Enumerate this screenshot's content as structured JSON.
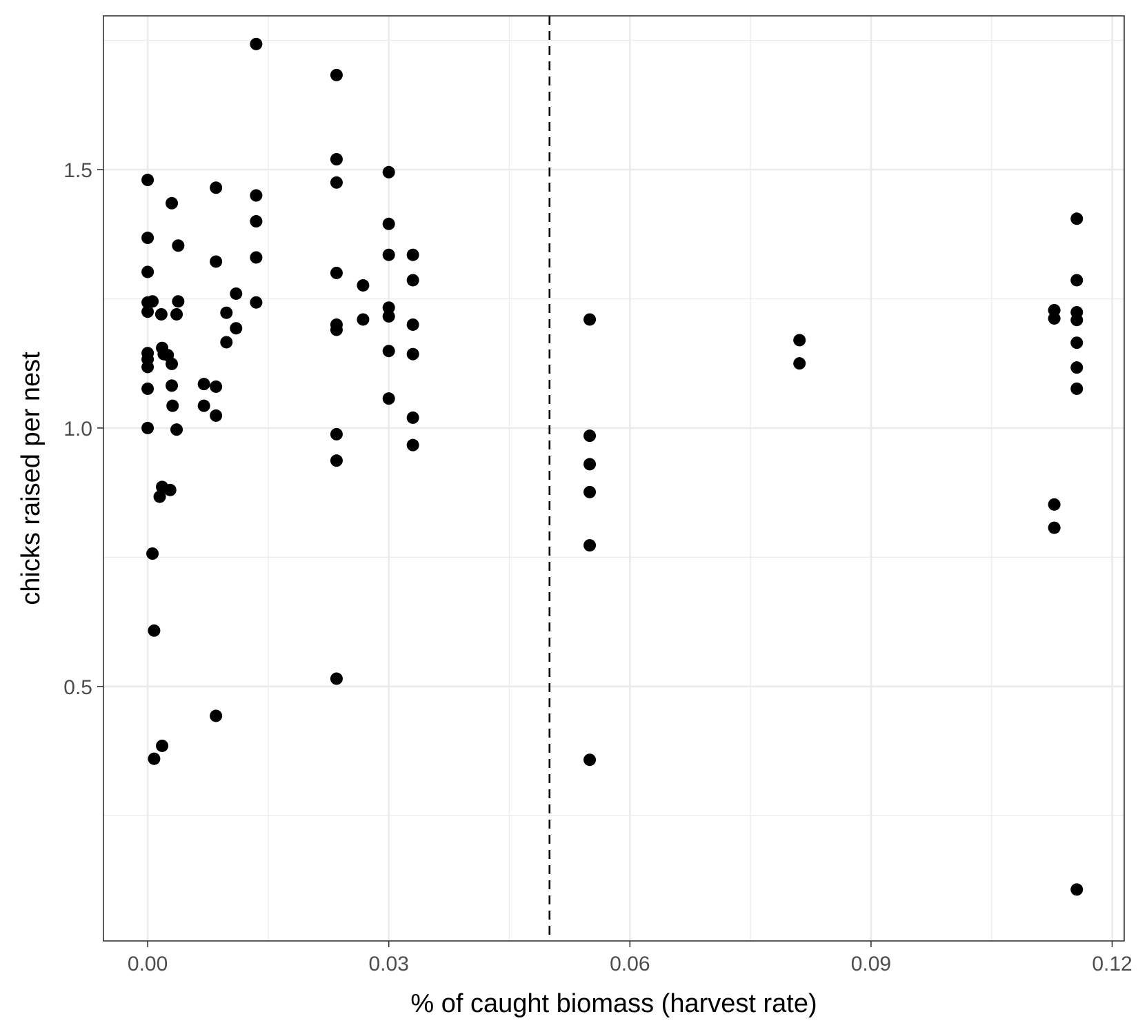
{
  "chart_data": {
    "type": "scatter",
    "xlabel": "% of caught biomass (harvest rate)",
    "ylabel": "chicks raised per nest",
    "xlim": [
      -0.0055,
      0.1215
    ],
    "ylim": [
      0.0075,
      1.7975
    ],
    "x_ticks": [
      0.0,
      0.03,
      0.06,
      0.09,
      0.12
    ],
    "x_tick_labels": [
      "0.00",
      "0.03",
      "0.06",
      "0.09",
      "0.12"
    ],
    "y_ticks": [
      0.5,
      1.0,
      1.5
    ],
    "y_tick_labels": [
      "0.5",
      "1.0",
      "1.5"
    ],
    "x_minor": [
      0.015,
      0.045,
      0.075,
      0.105
    ],
    "y_minor": [
      0.25,
      0.75,
      1.25,
      1.75
    ],
    "grid": true,
    "reference_line": {
      "x": 0.05,
      "style": "dashed",
      "color": "#000000"
    },
    "point_color": "#000000",
    "points": [
      [
        0.0,
        1.48
      ],
      [
        0.0,
        1.368
      ],
      [
        0.0,
        1.302
      ],
      [
        0.0,
        1.243
      ],
      [
        0.0,
        1.225
      ],
      [
        0.0,
        1.145
      ],
      [
        0.0,
        1.133
      ],
      [
        0.0,
        1.118
      ],
      [
        0.0,
        1.076
      ],
      [
        0.0,
        1.0
      ],
      [
        0.0006,
        1.245
      ],
      [
        0.0006,
        0.757
      ],
      [
        0.0008,
        0.608
      ],
      [
        0.0008,
        0.36
      ],
      [
        0.0015,
        0.867
      ],
      [
        0.0017,
        1.22
      ],
      [
        0.0018,
        1.155
      ],
      [
        0.0018,
        0.886
      ],
      [
        0.0018,
        0.385
      ],
      [
        0.002,
        1.143
      ],
      [
        0.0025,
        1.141
      ],
      [
        0.0028,
        0.88
      ],
      [
        0.003,
        1.435
      ],
      [
        0.003,
        1.124
      ],
      [
        0.003,
        1.082
      ],
      [
        0.0031,
        1.043
      ],
      [
        0.0036,
        1.22
      ],
      [
        0.0036,
        0.997
      ],
      [
        0.0038,
        1.353
      ],
      [
        0.0038,
        1.245
      ],
      [
        0.007,
        1.085
      ],
      [
        0.007,
        1.043
      ],
      [
        0.0085,
        1.465
      ],
      [
        0.0085,
        1.322
      ],
      [
        0.0085,
        1.08
      ],
      [
        0.0085,
        1.024
      ],
      [
        0.0085,
        0.443
      ],
      [
        0.0098,
        1.223
      ],
      [
        0.0098,
        1.166
      ],
      [
        0.011,
        1.26
      ],
      [
        0.011,
        1.193
      ],
      [
        0.0135,
        1.743
      ],
      [
        0.0135,
        1.45
      ],
      [
        0.0135,
        1.4
      ],
      [
        0.0135,
        1.33
      ],
      [
        0.0135,
        1.243
      ],
      [
        0.0235,
        1.683
      ],
      [
        0.0235,
        1.52
      ],
      [
        0.0235,
        1.475
      ],
      [
        0.0235,
        1.3
      ],
      [
        0.0235,
        1.2
      ],
      [
        0.0235,
        1.19
      ],
      [
        0.0235,
        0.988
      ],
      [
        0.0235,
        0.937
      ],
      [
        0.0235,
        0.515
      ],
      [
        0.0268,
        1.276
      ],
      [
        0.0268,
        1.21
      ],
      [
        0.03,
        1.495
      ],
      [
        0.03,
        1.395
      ],
      [
        0.03,
        1.335
      ],
      [
        0.03,
        1.233
      ],
      [
        0.03,
        1.216
      ],
      [
        0.03,
        1.149
      ],
      [
        0.03,
        1.057
      ],
      [
        0.033,
        1.335
      ],
      [
        0.033,
        1.286
      ],
      [
        0.033,
        1.2
      ],
      [
        0.033,
        1.143
      ],
      [
        0.033,
        1.02
      ],
      [
        0.033,
        0.967
      ],
      [
        0.055,
        1.21
      ],
      [
        0.055,
        0.985
      ],
      [
        0.055,
        0.93
      ],
      [
        0.055,
        0.876
      ],
      [
        0.055,
        0.773
      ],
      [
        0.055,
        0.358
      ],
      [
        0.0811,
        1.17
      ],
      [
        0.0811,
        1.125
      ],
      [
        0.1128,
        1.228
      ],
      [
        0.1128,
        1.212
      ],
      [
        0.1128,
        0.852
      ],
      [
        0.1128,
        0.807
      ],
      [
        0.1156,
        1.405
      ],
      [
        0.1156,
        1.286
      ],
      [
        0.1156,
        1.224
      ],
      [
        0.1156,
        1.209
      ],
      [
        0.1156,
        1.165
      ],
      [
        0.1156,
        1.117
      ],
      [
        0.1156,
        1.076
      ],
      [
        0.1156,
        0.107
      ]
    ]
  }
}
